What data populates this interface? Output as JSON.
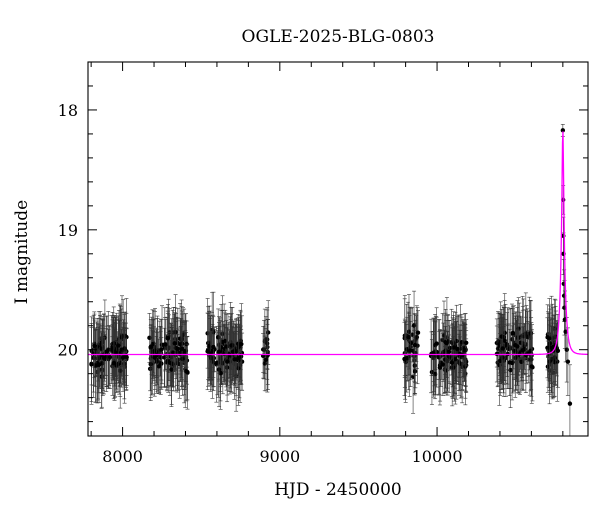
{
  "chart_data": {
    "type": "scatter",
    "title": "OGLE-2025-BLG-0803",
    "xlabel": "HJD - 2450000",
    "ylabel": "I magnitude",
    "xlim": [
      7780,
      10960
    ],
    "ylim": [
      20.72,
      17.6
    ],
    "y_inverted": true,
    "x_ticks": [
      8000,
      9000,
      10000
    ],
    "x_tick_labels": [
      "8000",
      "9000",
      "10000"
    ],
    "y_ticks": [
      18,
      19,
      20
    ],
    "y_tick_labels": [
      "18",
      "19",
      "20"
    ],
    "grid": false,
    "legend": "none",
    "colors": {
      "points": "#000000",
      "errorbars": "#333333",
      "model": "#ff00ff"
    },
    "baseline_magnitude": 20.04,
    "peak_magnitude": 18.15,
    "peak_time": 10800,
    "seasons": [
      {
        "start": 7800,
        "end": 8030,
        "mean": 20.03,
        "scatter": 0.15,
        "n": 110,
        "err": 0.26
      },
      {
        "start": 8170,
        "end": 8420,
        "mean": 20.03,
        "scatter": 0.15,
        "n": 110,
        "err": 0.26
      },
      {
        "start": 8540,
        "end": 8760,
        "mean": 20.03,
        "scatter": 0.15,
        "n": 110,
        "err": 0.26
      },
      {
        "start": 8890,
        "end": 8930,
        "mean": 20.0,
        "scatter": 0.12,
        "n": 14,
        "err": 0.25
      },
      {
        "start": 9790,
        "end": 9880,
        "mean": 20.0,
        "scatter": 0.18,
        "n": 35,
        "err": 0.26
      },
      {
        "start": 9960,
        "end": 10190,
        "mean": 20.03,
        "scatter": 0.15,
        "n": 100,
        "err": 0.26
      },
      {
        "start": 10380,
        "end": 10610,
        "mean": 20.0,
        "scatter": 0.15,
        "n": 100,
        "err": 0.26
      },
      {
        "start": 10700,
        "end": 10770,
        "mean": 20.0,
        "scatter": 0.15,
        "n": 40,
        "err": 0.26
      }
    ],
    "peak_points": [
      {
        "x": 10800,
        "y": 18.17
      },
      {
        "x": 10802,
        "y": 18.75
      },
      {
        "x": 10803,
        "y": 19.05
      },
      {
        "x": 10804,
        "y": 19.2
      },
      {
        "x": 10806,
        "y": 19.45
      },
      {
        "x": 10808,
        "y": 19.55
      },
      {
        "x": 10810,
        "y": 19.65
      },
      {
        "x": 10813,
        "y": 19.75
      },
      {
        "x": 10818,
        "y": 19.85
      },
      {
        "x": 10825,
        "y": 20.0
      },
      {
        "x": 10832,
        "y": 20.1
      },
      {
        "x": 10845,
        "y": 20.45
      }
    ]
  }
}
